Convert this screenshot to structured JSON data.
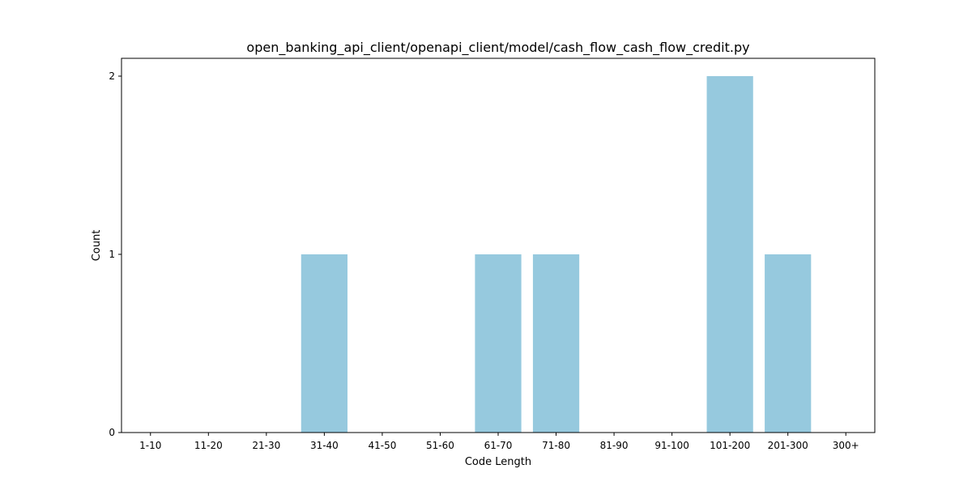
{
  "chart_data": {
    "type": "bar",
    "title": "open_banking_api_client/openapi_client/model/cash_flow_cash_flow_credit.py",
    "xlabel": "Code Length",
    "ylabel": "Count",
    "categories": [
      "1-10",
      "11-20",
      "21-30",
      "31-40",
      "41-50",
      "51-60",
      "61-70",
      "71-80",
      "81-90",
      "91-100",
      "101-200",
      "201-300",
      "300+"
    ],
    "values": [
      0,
      0,
      0,
      1,
      0,
      0,
      1,
      1,
      0,
      0,
      2,
      1,
      0
    ],
    "ylim": [
      0,
      2.1
    ],
    "yticks": [
      0,
      1,
      2
    ],
    "bar_color": "#96c9de",
    "grid": false,
    "legend": "none"
  }
}
